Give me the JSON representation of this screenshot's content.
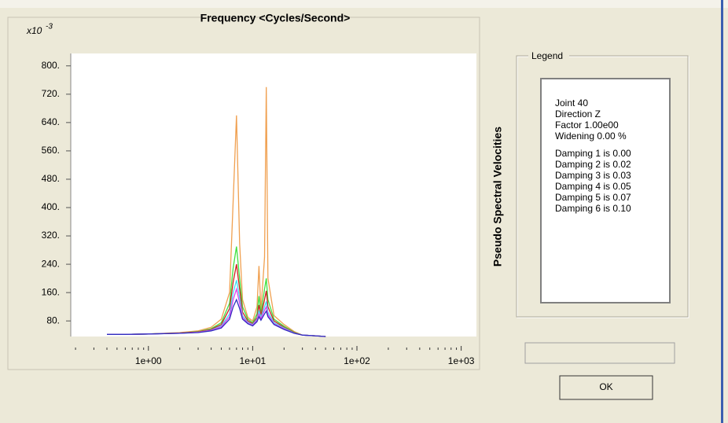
{
  "chart_data": {
    "type": "line",
    "title": "Frequency <Cycles/Second>",
    "y_label": "Pseudo Spectral Velocities",
    "y_multiplier": "x10",
    "y_multiplier_exponent": "-3",
    "log_x": true,
    "xlim": [
      0.18,
      1400
    ],
    "ylim": [
      36,
      835
    ],
    "xticks": [
      {
        "value": 1,
        "label": "1e+00"
      },
      {
        "value": 10,
        "label": "1e+01"
      },
      {
        "value": 100,
        "label": "1e+02"
      },
      {
        "value": 1000,
        "label": "1e+03"
      }
    ],
    "xminorticks": [
      0.2,
      0.3,
      0.4,
      0.5,
      0.6,
      0.7,
      0.8,
      0.9,
      2,
      3,
      4,
      5,
      6,
      7,
      8,
      9,
      20,
      30,
      40,
      50,
      60,
      70,
      80,
      90,
      200,
      300,
      400,
      500,
      600,
      700,
      800,
      900
    ],
    "yticks": [
      {
        "value": 80,
        "label": "80."
      },
      {
        "value": 160,
        "label": "160."
      },
      {
        "value": 240,
        "label": "240."
      },
      {
        "value": 320,
        "label": "320."
      },
      {
        "value": 400,
        "label": "400."
      },
      {
        "value": 480,
        "label": "480."
      },
      {
        "value": 560,
        "label": "560."
      },
      {
        "value": 640,
        "label": "640."
      },
      {
        "value": 720,
        "label": "720."
      },
      {
        "value": 800,
        "label": "800."
      }
    ],
    "x": [
      0.4,
      0.6,
      1,
      2,
      3,
      4,
      5,
      6,
      6.5,
      7,
      7.5,
      8,
      9,
      10,
      11,
      11.5,
      12,
      13,
      13.5,
      14,
      16,
      20,
      25,
      30,
      40,
      50
    ],
    "series": [
      {
        "name": "Damping 1 is 0.00",
        "color": "#f0a050",
        "values": [
          42,
          42,
          43,
          47,
          52,
          62,
          85,
          160,
          420,
          660,
          300,
          140,
          90,
          80,
          120,
          235,
          110,
          260,
          740,
          200,
          95,
          70,
          50,
          40,
          38,
          36
        ]
      },
      {
        "name": "Damping 2 is 0.02",
        "color": "#40e040",
        "values": [
          42,
          42,
          43,
          46,
          50,
          58,
          75,
          130,
          230,
          290,
          200,
          120,
          85,
          75,
          100,
          150,
          100,
          170,
          200,
          140,
          85,
          65,
          48,
          40,
          38,
          36
        ]
      },
      {
        "name": "Damping 3 is 0.03",
        "color": "#d02020",
        "values": [
          42,
          42,
          43,
          46,
          49,
          56,
          70,
          115,
          190,
          240,
          170,
          105,
          80,
          72,
          90,
          125,
          95,
          140,
          165,
          120,
          80,
          62,
          47,
          40,
          38,
          36
        ]
      },
      {
        "name": "Damping 4 is 0.05",
        "color": "#40e0f0",
        "values": [
          42,
          42,
          43,
          45,
          48,
          54,
          66,
          100,
          160,
          195,
          145,
          95,
          76,
          70,
          85,
          110,
          90,
          120,
          135,
          105,
          75,
          60,
          46,
          40,
          38,
          36
        ]
      },
      {
        "name": "Damping 5 is 0.07",
        "color": "#e040f0",
        "values": [
          42,
          42,
          43,
          45,
          48,
          53,
          63,
          92,
          140,
          170,
          130,
          90,
          74,
          68,
          82,
          100,
          86,
          110,
          120,
          98,
          72,
          58,
          45,
          40,
          38,
          36
        ]
      },
      {
        "name": "Damping 6 is 0.10",
        "color": "#3030c0",
        "values": [
          42,
          42,
          43,
          45,
          47,
          52,
          60,
          85,
          120,
          140,
          115,
          85,
          72,
          66,
          78,
          92,
          82,
          100,
          108,
          92,
          70,
          56,
          45,
          40,
          38,
          36
        ]
      }
    ]
  },
  "legend": {
    "title": "Legend",
    "info": [
      "Joint 40",
      "Direction Z",
      "Factor 1.00e00",
      "Widening 0.00 %"
    ],
    "info_color": "#f0a050"
  },
  "button": {
    "label": "OK"
  }
}
